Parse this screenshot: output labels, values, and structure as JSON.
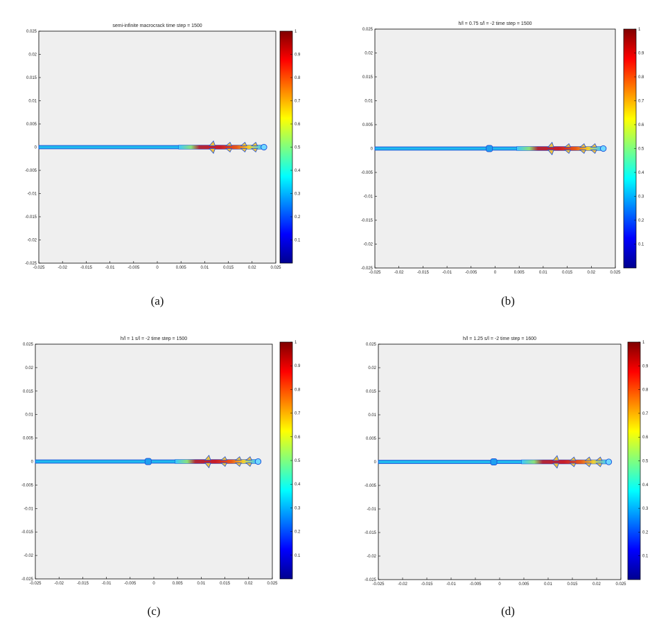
{
  "colors": {
    "plot_bg": "#efefef",
    "axis": "#000000",
    "crack_outline": "#1a4fd8",
    "crack_core": "#20b8ee",
    "colormap": "jet"
  },
  "chart_data": [
    {
      "type": "heatmap",
      "title": "semi-infinite macrocrack time step = 1500",
      "caption": "(a)",
      "xlim": [
        -0.025,
        0.025
      ],
      "ylim": [
        -0.025,
        0.025
      ],
      "xticks": [
        "-0.025",
        "-0.02",
        "-0.015",
        "-0.01",
        "-0.005",
        "0",
        "0.005",
        "0.01",
        "0.015",
        "0.02",
        "0.025"
      ],
      "yticks": [
        "0.025",
        "0.02",
        "0.015",
        "0.01",
        "0.005",
        "0",
        "-0.005",
        "-0.01",
        "-0.015",
        "-0.02",
        "-0.025"
      ],
      "colorbar": {
        "range": [
          0,
          1
        ],
        "ticks": [
          "1",
          "0.9",
          "0.8",
          "0.7",
          "0.6",
          "0.5",
          "0.4",
          "0.3",
          "0.2",
          "0.1"
        ]
      },
      "crack": {
        "y": 0,
        "x_start": -0.025,
        "x_tip": 0.0225
      },
      "microcrack": null,
      "damage_zone": {
        "x_start": 0.0045,
        "x_end": 0.022
      }
    },
    {
      "type": "heatmap",
      "title": "h/l = 0.75 s/l = -2 time step = 1500",
      "caption": "(b)",
      "xlim": [
        -0.025,
        0.025
      ],
      "ylim": [
        -0.025,
        0.025
      ],
      "xticks": [
        "-0.025",
        "-0.02",
        "-0.015",
        "-0.01",
        "-0.005",
        "0",
        "0.005",
        "0.01",
        "0.015",
        "0.02",
        "0.025"
      ],
      "yticks": [
        "0.025",
        "0.02",
        "0.015",
        "0.01",
        "0.005",
        "0",
        "-0.005",
        "-0.01",
        "-0.015",
        "-0.02",
        "-0.025"
      ],
      "colorbar": {
        "range": [
          0,
          1
        ],
        "ticks": [
          "1",
          "0.9",
          "0.8",
          "0.7",
          "0.6",
          "0.5",
          "0.4",
          "0.3",
          "0.2",
          "0.1"
        ]
      },
      "crack": {
        "y": 0,
        "x_start": -0.025,
        "x_tip": 0.0225
      },
      "microcrack": {
        "x": -0.0012
      },
      "damage_zone": {
        "x_start": 0.0045,
        "x_end": 0.022
      }
    },
    {
      "type": "heatmap",
      "title": "h/l = 1 s/l = -2 time step = 1500",
      "caption": "(c)",
      "xlim": [
        -0.025,
        0.025
      ],
      "ylim": [
        -0.025,
        0.025
      ],
      "xticks": [
        "-0.025",
        "-0.02",
        "-0.015",
        "-0.01",
        "-0.005",
        "0",
        "0.005",
        "0.01",
        "0.015",
        "0.02",
        "0.025"
      ],
      "yticks": [
        "0.025",
        "0.02",
        "0.015",
        "0.01",
        "0.005",
        "0",
        "-0.005",
        "-0.01",
        "-0.015",
        "-0.02",
        "-0.025"
      ],
      "colorbar": {
        "range": [
          0,
          1
        ],
        "ticks": [
          "1",
          "0.9",
          "0.8",
          "0.7",
          "0.6",
          "0.5",
          "0.4",
          "0.3",
          "0.2",
          "0.1"
        ]
      },
      "crack": {
        "y": 0,
        "x_start": -0.025,
        "x_tip": 0.022
      },
      "microcrack": {
        "x": -0.0012
      },
      "damage_zone": {
        "x_start": 0.0045,
        "x_end": 0.0215
      }
    },
    {
      "type": "heatmap",
      "title": "h/l = 1.25 s/l = -2 time step = 1600",
      "caption": "(d)",
      "xlim": [
        -0.025,
        0.025
      ],
      "ylim": [
        -0.025,
        0.025
      ],
      "xticks": [
        "-0.025",
        "-0.02",
        "-0.015",
        "-0.01",
        "-0.005",
        "0",
        "0.005",
        "0.01",
        "0.015",
        "0.02",
        "0.025"
      ],
      "yticks": [
        "0.025",
        "0.02",
        "0.015",
        "0.01",
        "0.005",
        "0",
        "-0.005",
        "-0.01",
        "-0.015",
        "-0.02",
        "-0.025"
      ],
      "colorbar": {
        "range": [
          0,
          1
        ],
        "ticks": [
          "1",
          "0.9",
          "0.8",
          "0.7",
          "0.6",
          "0.5",
          "0.4",
          "0.3",
          "0.2",
          "0.1"
        ]
      },
      "crack": {
        "y": 0,
        "x_start": -0.025,
        "x_tip": 0.0225
      },
      "microcrack": {
        "x": -0.0012
      },
      "damage_zone": {
        "x_start": 0.0045,
        "x_end": 0.022
      }
    }
  ]
}
